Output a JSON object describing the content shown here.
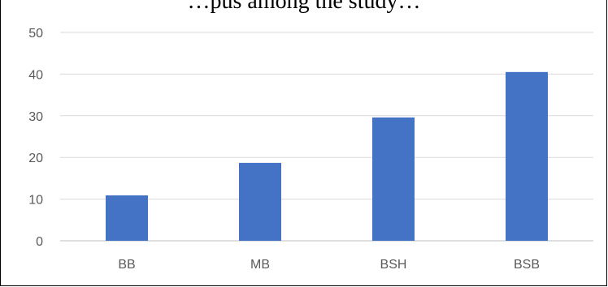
{
  "chart_data": {
    "type": "bar",
    "title": "…pus among the study…",
    "categories": [
      "BB",
      "MB",
      "BSH",
      "BSB"
    ],
    "values": [
      10.9,
      18.7,
      29.6,
      40.5
    ],
    "ylim": [
      0,
      50
    ],
    "yticks": [
      "0",
      "10",
      "20",
      "30",
      "40",
      "50"
    ],
    "xlabel": "",
    "ylabel": "",
    "grid": true,
    "bar_color": "#4472C4",
    "grid_color": "#D9D9D9",
    "axis_color": "#BFBFBF",
    "tick_label_color": "#595959"
  }
}
